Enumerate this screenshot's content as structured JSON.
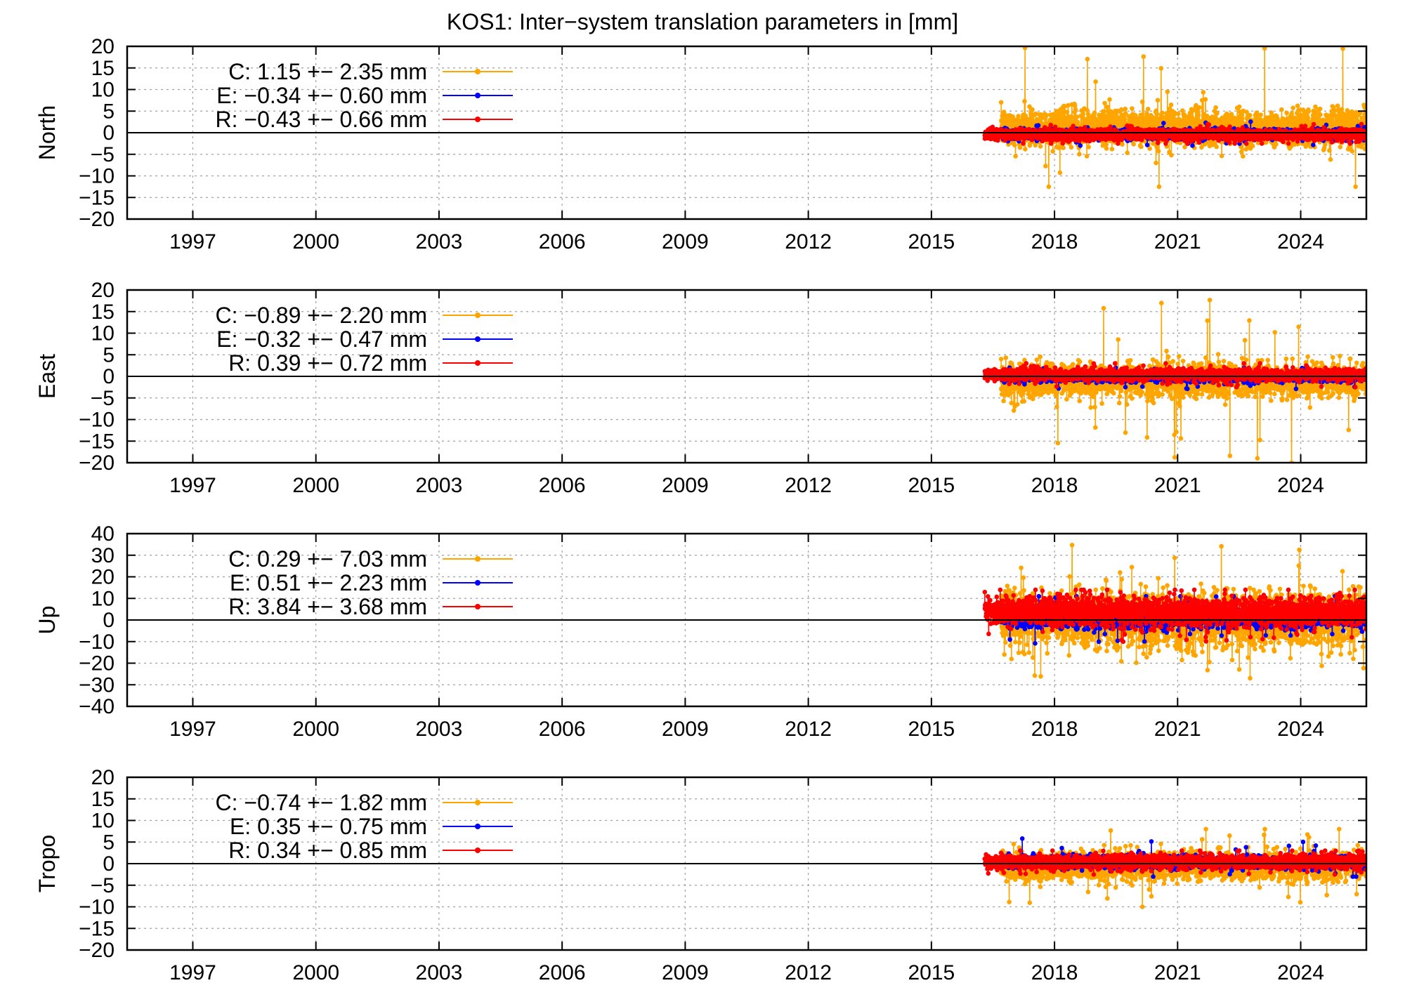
{
  "title": "KOS1: Inter−system translation parameters in [mm]",
  "chart_data": [
    {
      "type": "line",
      "ylabel": "North",
      "ylim": [
        -20,
        20
      ],
      "yticks": [
        20,
        15,
        10,
        5,
        0,
        -5,
        -10,
        -15,
        -20
      ],
      "ytick_labels": [
        "20",
        "15",
        "10",
        "5",
        "0",
        "−5",
        "−10",
        "−15",
        "−20"
      ],
      "xlim": [
        1995.4,
        2025.6
      ],
      "xticks": [
        1997,
        2000,
        2003,
        2006,
        2009,
        2012,
        2015,
        2018,
        2021,
        2024
      ],
      "xtick_labels": [
        "1997",
        "2000",
        "2003",
        "2006",
        "2009",
        "2012",
        "2015",
        "2018",
        "2021",
        "2024"
      ],
      "grid": true,
      "legend_position": "top-left",
      "series": [
        {
          "key": "C",
          "legend": "C:   1.15 +− 2.35 mm",
          "color": "#FFA500",
          "mean": 1.15,
          "std": 2.35,
          "start": 2016.7,
          "end": 2025.6,
          "min": -12.5,
          "max": 20
        },
        {
          "key": "E",
          "legend": "E:  −0.34 +− 0.60 mm",
          "color": "#0000FF",
          "mean": -0.34,
          "std": 0.6,
          "start": 2016.7,
          "end": 2025.6,
          "min": -3,
          "max": 3
        },
        {
          "key": "R",
          "legend": "R:  −0.43 +− 0.66 mm",
          "color": "#FF0000",
          "mean": -0.43,
          "std": 0.66,
          "start": 2016.3,
          "end": 2025.6,
          "min": -2.5,
          "max": 2
        }
      ]
    },
    {
      "type": "line",
      "ylabel": "East",
      "ylim": [
        -20,
        20
      ],
      "yticks": [
        20,
        15,
        10,
        5,
        0,
        -5,
        -10,
        -15,
        -20
      ],
      "ytick_labels": [
        "20",
        "15",
        "10",
        "5",
        "0",
        "−5",
        "−10",
        "−15",
        "−20"
      ],
      "xlim": [
        1995.4,
        2025.6
      ],
      "xticks": [
        1997,
        2000,
        2003,
        2006,
        2009,
        2012,
        2015,
        2018,
        2021,
        2024
      ],
      "xtick_labels": [
        "1997",
        "2000",
        "2003",
        "2006",
        "2009",
        "2012",
        "2015",
        "2018",
        "2021",
        "2024"
      ],
      "grid": true,
      "legend_position": "top-left",
      "series": [
        {
          "key": "C",
          "legend": "C:  −0.89 +− 2.20 mm",
          "color": "#FFA500",
          "mean": -0.89,
          "std": 2.2,
          "start": 2016.7,
          "end": 2025.6,
          "min": -20,
          "max": 18.5
        },
        {
          "key": "E",
          "legend": "E:  −0.32 +− 0.47 mm",
          "color": "#0000FF",
          "mean": -0.32,
          "std": 0.47,
          "start": 2016.7,
          "end": 2025.6,
          "min": -3,
          "max": 2
        },
        {
          "key": "R",
          "legend": "R:  0.39 +− 0.72 mm",
          "color": "#FF0000",
          "mean": 0.39,
          "std": 0.72,
          "start": 2016.3,
          "end": 2025.6,
          "min": -2.5,
          "max": 3
        }
      ]
    },
    {
      "type": "line",
      "ylabel": "Up",
      "ylim": [
        -40,
        40
      ],
      "yticks": [
        40,
        30,
        20,
        10,
        0,
        -10,
        -20,
        -30,
        -40
      ],
      "ytick_labels": [
        "40",
        "30",
        "20",
        "10",
        "0",
        "−10",
        "−20",
        "−30",
        "−40"
      ],
      "xlim": [
        1995.4,
        2025.6
      ],
      "xticks": [
        1997,
        2000,
        2003,
        2006,
        2009,
        2012,
        2015,
        2018,
        2021,
        2024
      ],
      "xtick_labels": [
        "1997",
        "2000",
        "2003",
        "2006",
        "2009",
        "2012",
        "2015",
        "2018",
        "2021",
        "2024"
      ],
      "grid": true,
      "legend_position": "top-left",
      "series": [
        {
          "key": "C",
          "legend": "C:  0.29 +− 7.03 mm",
          "color": "#FFA500",
          "mean": 0.29,
          "std": 7.03,
          "start": 2016.7,
          "end": 2025.6,
          "min": -31,
          "max": 40
        },
        {
          "key": "E",
          "legend": "E:  0.51 +− 2.23 mm",
          "color": "#0000FF",
          "mean": 0.51,
          "std": 2.23,
          "start": 2016.7,
          "end": 2025.6,
          "min": -12,
          "max": 11
        },
        {
          "key": "R",
          "legend": "R:  3.84 +− 3.68 mm",
          "color": "#FF0000",
          "mean": 3.84,
          "std": 3.68,
          "start": 2016.3,
          "end": 2025.6,
          "min": -10,
          "max": 14
        }
      ]
    },
    {
      "type": "line",
      "ylabel": "Tropo",
      "ylim": [
        -20,
        20
      ],
      "yticks": [
        20,
        15,
        10,
        5,
        0,
        -5,
        -10,
        -15,
        -20
      ],
      "ytick_labels": [
        "20",
        "15",
        "10",
        "5",
        "0",
        "−5",
        "−10",
        "−15",
        "−20"
      ],
      "xlim": [
        1995.4,
        2025.6
      ],
      "xticks": [
        1997,
        2000,
        2003,
        2006,
        2009,
        2012,
        2015,
        2018,
        2021,
        2024
      ],
      "xtick_labels": [
        "1997",
        "2000",
        "2003",
        "2006",
        "2009",
        "2012",
        "2015",
        "2018",
        "2021",
        "2024"
      ],
      "grid": true,
      "legend_position": "top-left",
      "series": [
        {
          "key": "C",
          "legend": "C:  −0.74 +− 1.82 mm",
          "color": "#FFA500",
          "mean": -0.74,
          "std": 1.82,
          "start": 2016.7,
          "end": 2025.6,
          "min": -10,
          "max": 8
        },
        {
          "key": "E",
          "legend": "E:  0.35 +− 0.75 mm",
          "color": "#0000FF",
          "mean": 0.35,
          "std": 0.75,
          "start": 2016.7,
          "end": 2025.6,
          "min": -3,
          "max": 6
        },
        {
          "key": "R",
          "legend": "R:  0.34 +− 0.85 mm",
          "color": "#FF0000",
          "mean": 0.34,
          "std": 0.85,
          "start": 2016.3,
          "end": 2025.6,
          "min": -2.5,
          "max": 3
        }
      ]
    }
  ]
}
